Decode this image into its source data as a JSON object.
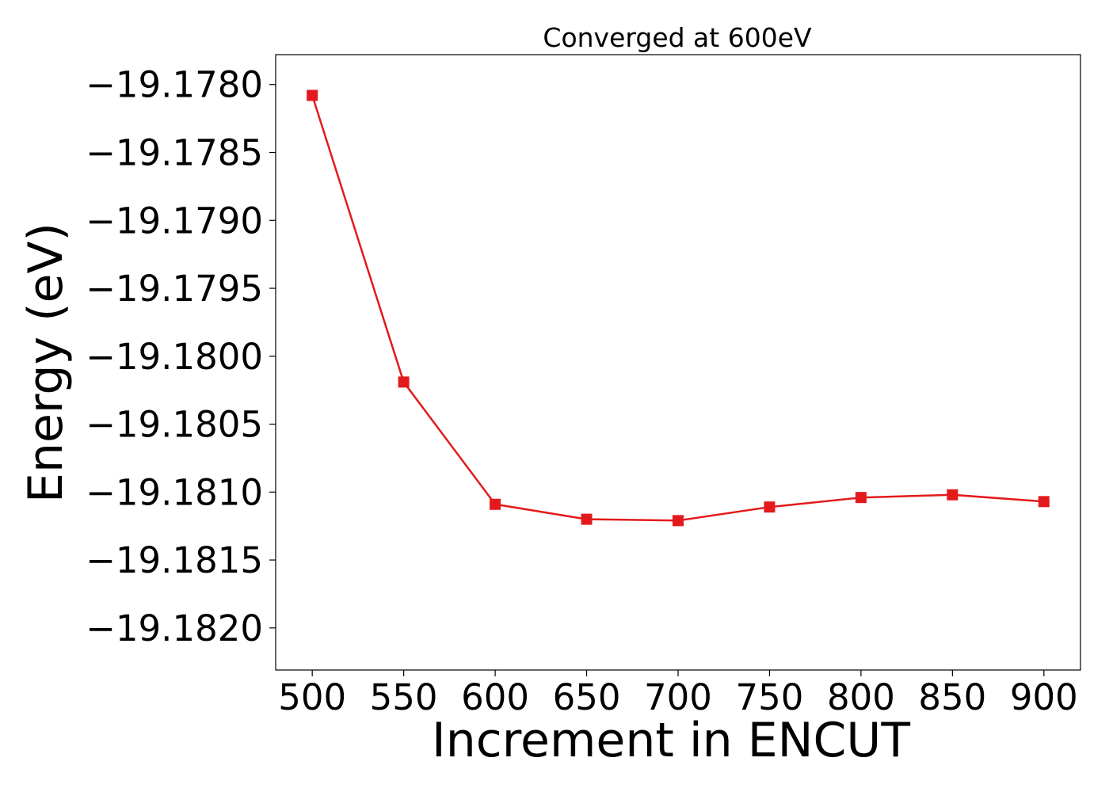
{
  "chart_data": {
    "type": "line",
    "title": "Converged at 600eV",
    "xlabel": "Increment in ENCUT",
    "ylabel": "Energy (eV)",
    "x": [
      500,
      550,
      600,
      650,
      700,
      750,
      800,
      850,
      900
    ],
    "series": [
      {
        "values": [
          -19.17808,
          -19.18019,
          -19.18109,
          -19.1812,
          -19.18121,
          -19.18111,
          -19.18104,
          -19.18102,
          -19.18107
        ],
        "color": "#e31a1c",
        "marker": "square"
      }
    ],
    "xticks": [
      500,
      550,
      600,
      650,
      700,
      750,
      800,
      850,
      900
    ],
    "xtick_labels": [
      "500",
      "550",
      "600",
      "650",
      "700",
      "750",
      "800",
      "850",
      "900"
    ],
    "yticks": [
      -19.178,
      -19.1785,
      -19.179,
      -19.1795,
      -19.18,
      -19.1805,
      -19.181,
      -19.1815,
      -19.182
    ],
    "ytick_labels": [
      "−19.1780",
      "−19.1785",
      "−19.1790",
      "−19.1795",
      "−19.1800",
      "−19.1805",
      "−19.1810",
      "−19.1815",
      "−19.1820"
    ],
    "xlim": [
      480,
      920
    ],
    "ylim": [
      -19.18231,
      -19.17778
    ],
    "grid": false,
    "legend": false
  }
}
